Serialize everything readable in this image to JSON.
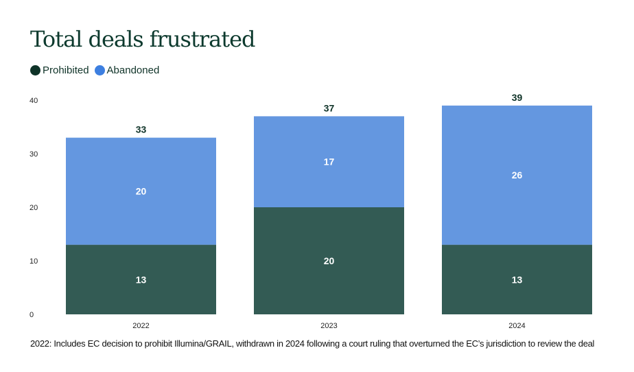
{
  "chart_data": {
    "type": "bar",
    "stacked": true,
    "title": "Total deals frustrated",
    "categories": [
      "2022",
      "2023",
      "2024"
    ],
    "series": [
      {
        "name": "Prohibited",
        "values": [
          13,
          20,
          13
        ],
        "color": "#335b54"
      },
      {
        "name": "Abandoned",
        "values": [
          20,
          17,
          26
        ],
        "color": "#6497e0"
      }
    ],
    "totals": [
      "33",
      "37",
      "39"
    ],
    "ylim": [
      0,
      40
    ],
    "yticks": [
      "0",
      "10",
      "20",
      "30",
      "40"
    ],
    "legend_position": "top-left",
    "grid": false
  },
  "legend_swatches": {
    "prohibited": "#0f3328",
    "abandoned": "#3d7fe0"
  },
  "footnote": "2022: Includes EC decision to prohibit Illumina/GRAIL, withdrawn in 2024 following a court ruling that overturned the EC’s jurisdiction to review the deal"
}
